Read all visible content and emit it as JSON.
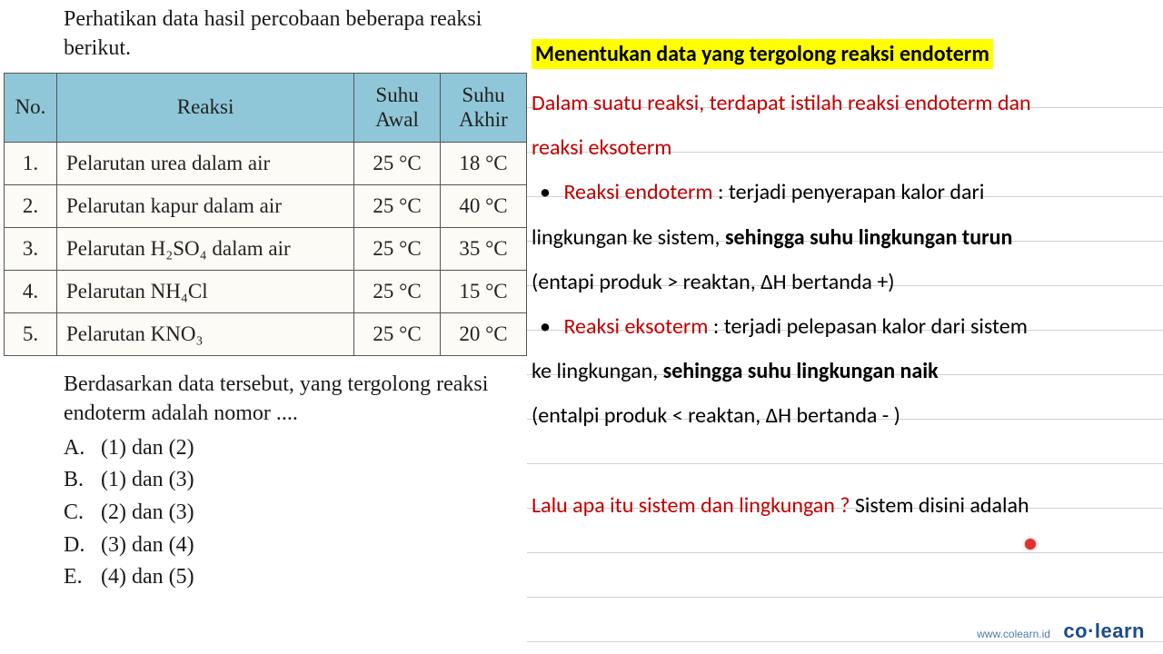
{
  "left": {
    "intro": "Perhatikan data hasil percobaan beberapa reaksi berikut.",
    "headers": {
      "no": "No.",
      "reaksi": "Reaksi",
      "awal": "Suhu Awal",
      "akhir": "Suhu Akhir"
    },
    "rows": [
      {
        "n": "1.",
        "r": "Pelarutan urea dalam air",
        "a": "25 °C",
        "k": "18 °C"
      },
      {
        "n": "2.",
        "r": "Pelarutan kapur dalam air",
        "a": "25 °C",
        "k": "40 °C"
      },
      {
        "n": "3.",
        "r": "Pelarutan H₂SO₄ dalam air",
        "a": "25 °C",
        "k": "35 °C"
      },
      {
        "n": "4.",
        "r": "Pelarutan NH₄Cl",
        "a": "25 °C",
        "k": "15 °C"
      },
      {
        "n": "5.",
        "r": "Pelarutan KNO₃",
        "a": "25 °C",
        "k": "20 °C"
      }
    ],
    "question": "Berdasarkan data tersebut, yang tergolong reaksi endoterm adalah nomor ....",
    "options": [
      {
        "l": "A.",
        "t": "(1) dan (2)"
      },
      {
        "l": "B.",
        "t": "(1) dan (3)"
      },
      {
        "l": "C.",
        "t": "(2) dan (3)"
      },
      {
        "l": "D.",
        "t": "(3) dan (4)"
      },
      {
        "l": "E.",
        "t": "(4) dan (5)"
      }
    ]
  },
  "right": {
    "title": "Menentukan data yang tergolong reaksi endoterm",
    "p1a": "Dalam suatu reaksi, terdapat istilah reaksi endoterm dan",
    "p1b": "reaksi eksoterm",
    "b1_label": "Reaksi endoterm",
    "b1_rest1": " : terjadi penyerapan kalor dari",
    "b1_line2a": "lingkungan ke sistem, ",
    "b1_line2b": "sehingga suhu lingkungan turun",
    "b1_line3": "(entapi produk > reaktan, ΔH bertanda +)",
    "b2_label": "Reaksi eksoterm",
    "b2_rest1": " : terjadi pelepasan kalor dari sistem",
    "b2_line2a": "ke lingkungan, ",
    "b2_line2b": "sehingga suhu lingkungan naik",
    "b2_line3": "(entalpi produk < reaktan, ΔH bertanda - )",
    "q2a": "Lalu apa itu sistem dan lingkungan ?",
    "q2b": " Sistem disini adalah"
  },
  "footer": {
    "url": "www.colearn.id",
    "brand1": "co",
    "brand2": "learn"
  },
  "colors": {
    "highlight_bg": "#ffff00",
    "red_text": "#c00000",
    "table_header_bg": "#8fc7d8",
    "line_color": "#d0d0d0",
    "brand_color": "#1a4b8c"
  }
}
